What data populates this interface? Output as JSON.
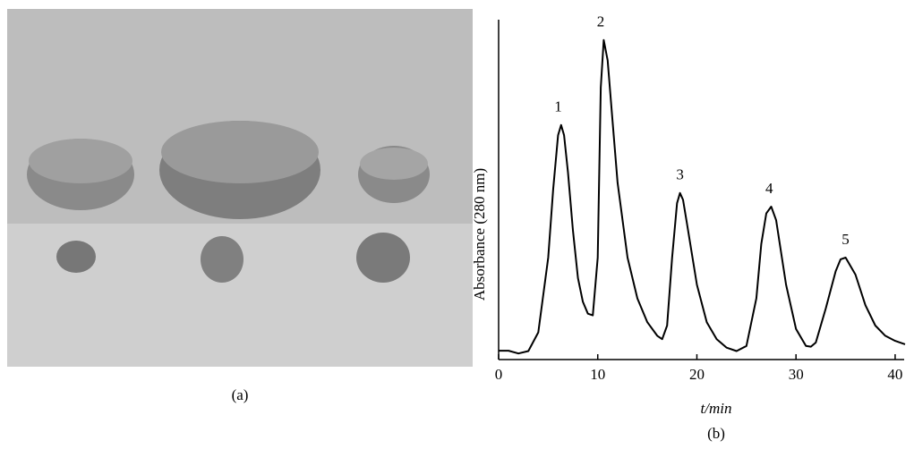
{
  "photo_caption": "(a)",
  "chart_data": {
    "type": "line",
    "caption": "(b)",
    "x_label": "t/min",
    "y_label": "Absorbance (280 nm)",
    "xlim": [
      0,
      41
    ],
    "xticks": [
      0,
      10,
      20,
      30,
      40
    ],
    "ylim": [
      0,
      100
    ],
    "color": "#000000",
    "x": [
      0,
      1,
      2,
      3,
      4,
      5,
      5.5,
      6,
      6.3,
      6.6,
      7,
      7.5,
      8,
      8.5,
      9,
      9.5,
      10,
      10.3,
      10.6,
      11,
      11.5,
      12,
      13,
      14,
      15,
      16,
      16.5,
      17,
      17.5,
      18,
      18.3,
      18.6,
      19,
      20,
      21,
      22,
      23,
      24,
      25,
      26,
      26.5,
      27,
      27.5,
      28,
      29,
      30,
      31,
      31.5,
      32,
      33,
      34,
      34.5,
      35,
      36,
      37,
      38,
      39,
      40,
      41
    ],
    "values": [
      2.6,
      2.6,
      1.8,
      2.5,
      8,
      30,
      50,
      66,
      69,
      66,
      55,
      38,
      24,
      17,
      13.5,
      13,
      30,
      80,
      94,
      88,
      70,
      52,
      30,
      18,
      11,
      7,
      6,
      10,
      30,
      46,
      49,
      47,
      40,
      22,
      11,
      6,
      3.5,
      2.5,
      4,
      18,
      34,
      43,
      45,
      41,
      22,
      9,
      4,
      3.8,
      5,
      15,
      26,
      29.5,
      30,
      25,
      16,
      10,
      7,
      5.5,
      4.5
    ],
    "annotations": [
      {
        "text": "1",
        "x": 6.0,
        "y": 73
      },
      {
        "text": "2",
        "x": 10.3,
        "y": 98
      },
      {
        "text": "3",
        "x": 18.3,
        "y": 53
      },
      {
        "text": "4",
        "x": 27.3,
        "y": 49
      },
      {
        "text": "5",
        "x": 35.0,
        "y": 34
      }
    ]
  }
}
